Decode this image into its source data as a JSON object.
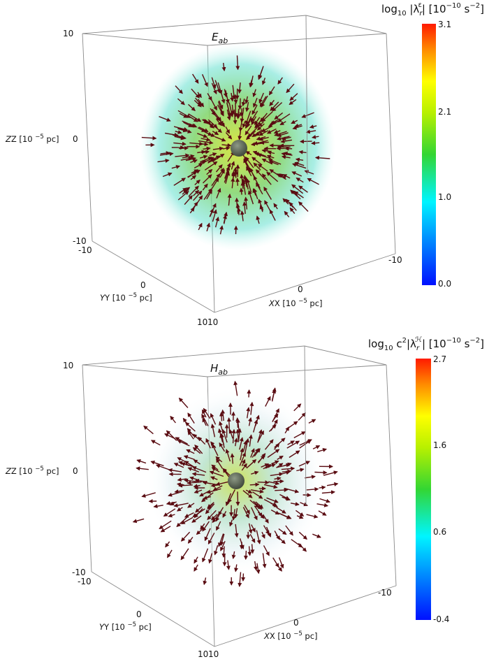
{
  "chart_data": [
    {
      "type": "3d-vector-field",
      "title": "E",
      "title_sub": "ab",
      "colorbar": {
        "label_prefix": "log",
        "label_base": "10",
        "label_main": " |λ",
        "label_sub": "r",
        "label_sup": "ε",
        "label_units": "| [10",
        "label_exp": "−10",
        "label_units2": " s",
        "label_exp2": "−2",
        "label_close": "]",
        "min": 0.0,
        "max": 3.1,
        "ticks": [
          "3.1",
          "2.1",
          "1.0",
          "0.0"
        ],
        "tick_values": [
          3.1,
          2.1,
          1.0,
          0.0
        ],
        "colormap": "jet"
      },
      "axes": {
        "zlabel": "Z [10",
        "zlabel_exp": "−5",
        "zlabel_end": " pc]",
        "xlabel": "X [10",
        "xlabel_exp": "−5",
        "xlabel_end": " pc]",
        "ylabel": "Y [10",
        "ylabel_exp": "−5",
        "ylabel_end": " pc]",
        "z_ticks": [
          "10",
          "0",
          "-10"
        ],
        "x_ticks": [
          "-10",
          "0",
          "10"
        ],
        "y_ticks": [
          "-10",
          "0",
          "10"
        ],
        "xlim": [
          -10,
          10
        ],
        "ylim": [
          -10,
          10
        ],
        "zlim": [
          -10,
          10
        ]
      },
      "field_direction": "inward",
      "glow_colors": [
        "#d9e43a",
        "#7fd46a",
        "#63e0cf"
      ]
    },
    {
      "type": "3d-vector-field",
      "title": "H",
      "title_sub": "ab",
      "colorbar": {
        "label_prefix": "log",
        "label_base": "10",
        "label_main": " c",
        "label_sub": "",
        "label_sup": "2",
        "label_units": "|λ",
        "label_sub2": "r",
        "label_sup2": "ℋ",
        "label_units_b": "| [10",
        "label_exp": "−10",
        "label_units2": " s",
        "label_exp2": "−2",
        "label_close": "]",
        "min": -0.4,
        "max": 2.7,
        "ticks": [
          "2.7",
          "1.6",
          "0.6",
          "-0.4"
        ],
        "tick_values": [
          2.7,
          1.6,
          0.6,
          -0.4
        ],
        "colormap": "jet"
      },
      "axes": {
        "zlabel": "Z [10",
        "zlabel_exp": "−5",
        "zlabel_end": " pc]",
        "xlabel": "X [10",
        "xlabel_exp": "−5",
        "xlabel_end": " pc]",
        "ylabel": "Y [10",
        "ylabel_exp": "−5",
        "ylabel_end": " pc]",
        "z_ticks": [
          "10",
          "0",
          "-10"
        ],
        "x_ticks": [
          "-10",
          "0",
          "10"
        ],
        "y_ticks": [
          "-10",
          "0",
          "10"
        ],
        "xlim": [
          -10,
          10
        ],
        "ylim": [
          -10,
          10
        ],
        "zlim": [
          -10,
          10
        ]
      },
      "field_direction": "outward",
      "glow_colors": [
        "#c9df4a",
        "#a9dcc0",
        "#dfeef2"
      ]
    }
  ],
  "colors": {
    "arrow": "#5a0c12",
    "box": "#8a8a8a",
    "center_sphere": "#4e5a4a"
  }
}
